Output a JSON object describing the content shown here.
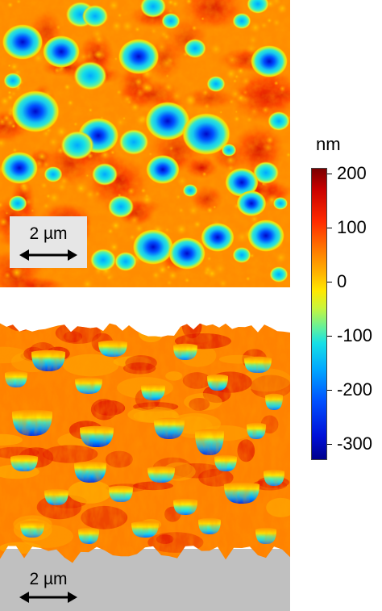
{
  "colorbar": {
    "unit": "nm",
    "ticks": [
      "200",
      "100",
      "0",
      "-100",
      "-200",
      "-300"
    ],
    "range_nm": [
      -330,
      210
    ],
    "tick_values_nm": [
      200,
      100,
      0,
      -100,
      -200,
      -300
    ]
  },
  "top_image": {
    "view": "top-down height map",
    "scalebar_label": "2 µm"
  },
  "bottom_image": {
    "view": "3D perspective height map",
    "scalebar_label": "2 µm"
  },
  "colors": {
    "high": "#c80000",
    "mid_high": "#ff7a00",
    "surface": "#ffb400",
    "zero": "#ffe800",
    "low": "#16e0e6",
    "deep": "#0010d8",
    "background_gray": "#c0c0c0"
  }
}
